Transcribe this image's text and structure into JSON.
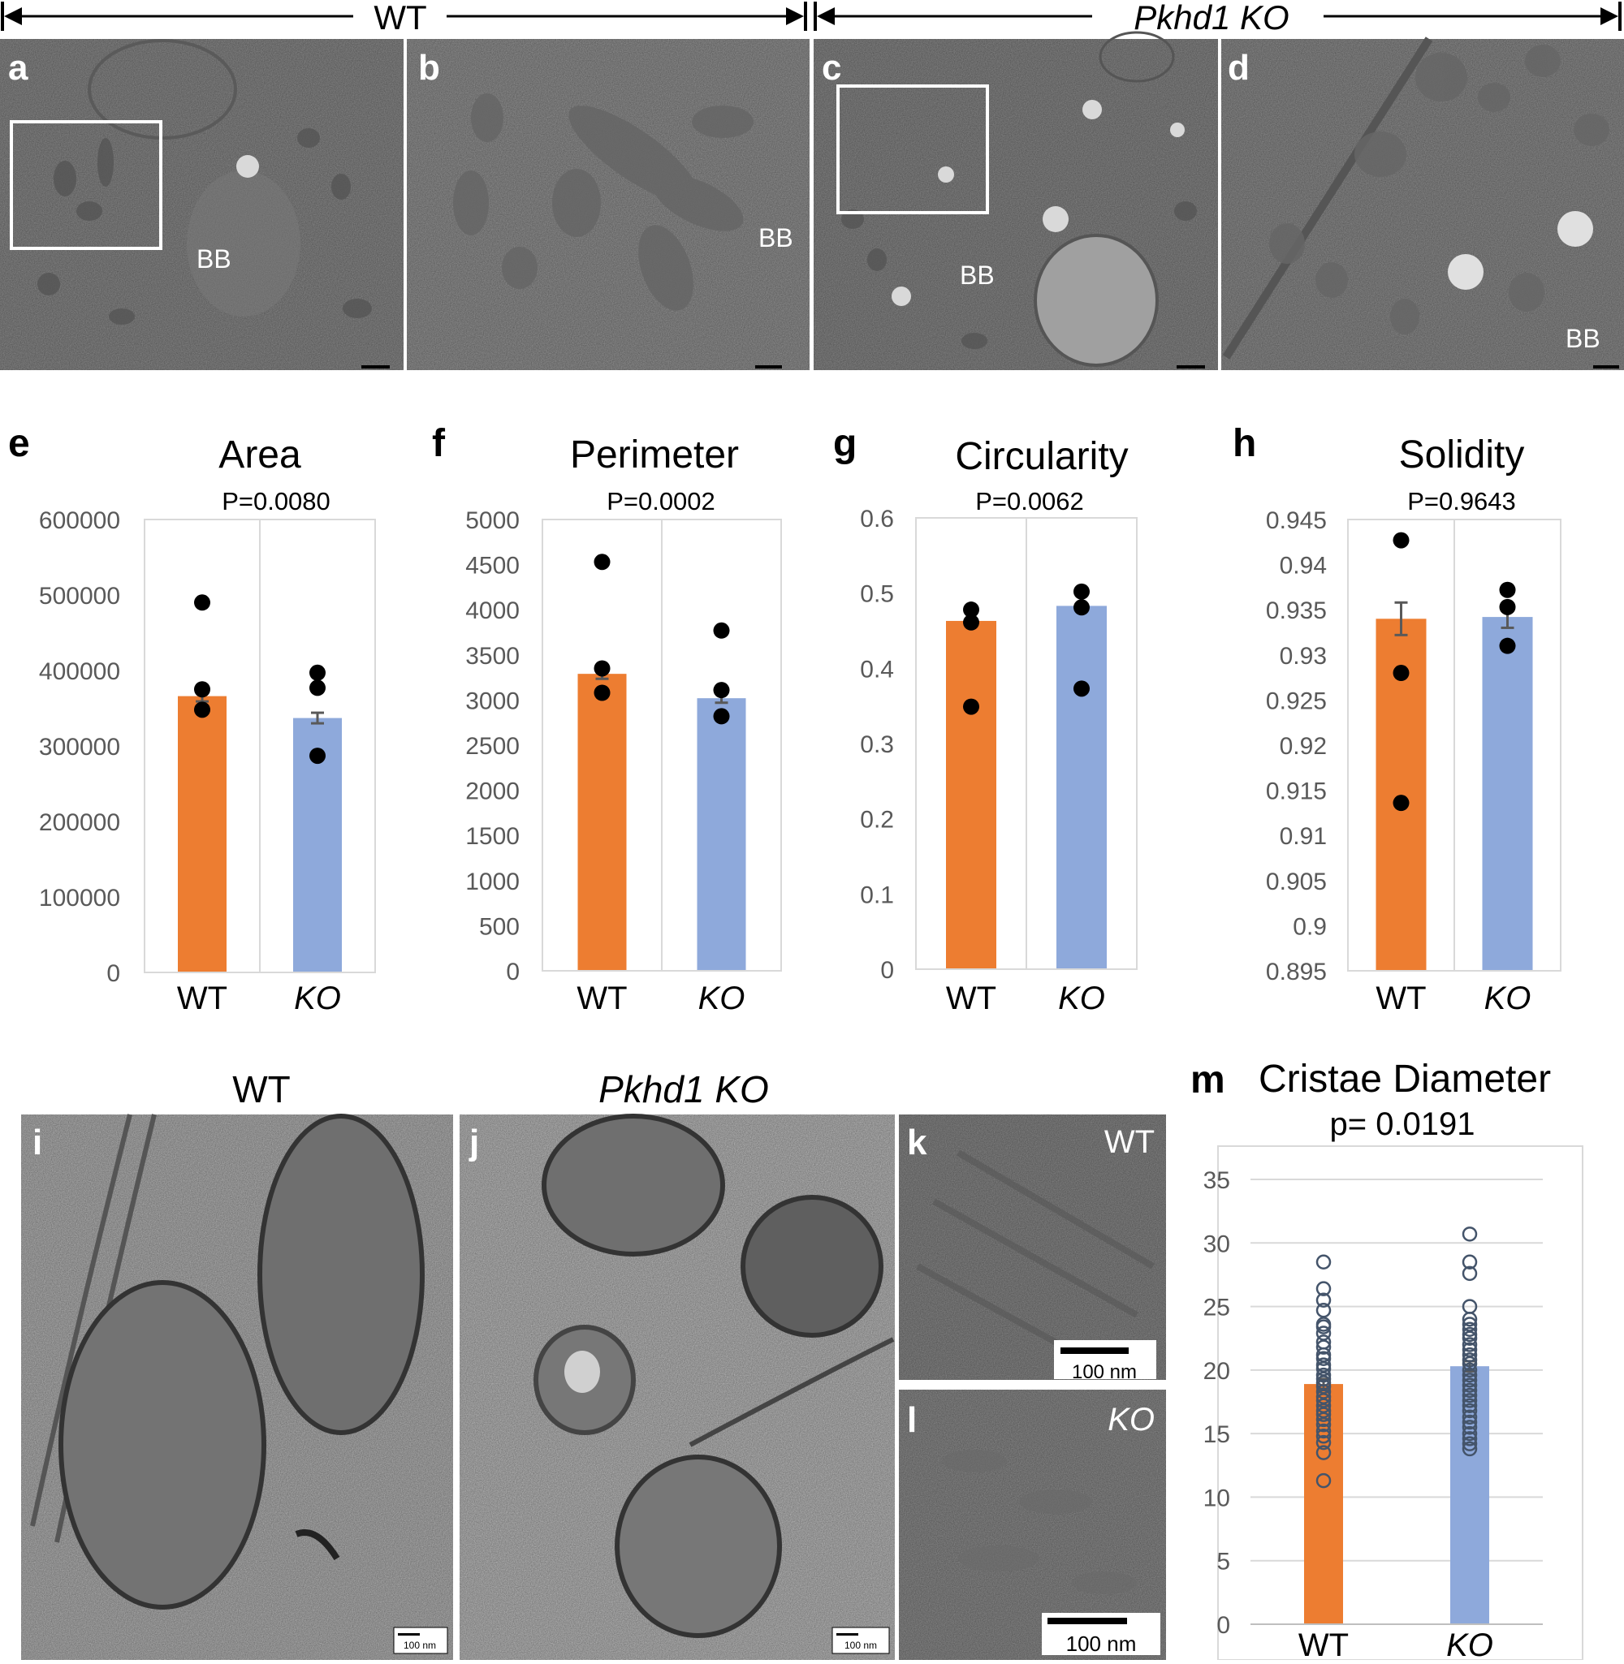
{
  "header": {
    "wt_label": "WT",
    "ko_label": "Pkhd1 KO"
  },
  "panels_top": [
    {
      "letter": "a",
      "bb": "BB"
    },
    {
      "letter": "b",
      "bb": "BB"
    },
    {
      "letter": "c",
      "bb": "BB"
    },
    {
      "letter": "d",
      "bb": "BB"
    }
  ],
  "panels_bottom": {
    "i_letter": "i",
    "j_letter": "j",
    "k_letter": "k",
    "l_letter": "l",
    "wt_title": "WT",
    "ko_title": "Pkhd1 KO",
    "k_tag": "WT",
    "l_tag": "KO",
    "scale_small": "100 nm",
    "scale_large": "100 nm"
  },
  "colors": {
    "wt_bar": "#ED7D31",
    "ko_bar": "#8EA9DB",
    "dot": "#000000",
    "circle": "#44546A",
    "err": "#595959",
    "grid": "#D9D9D9",
    "tick_text": "#595959"
  },
  "chart_data": [
    {
      "panel": "e",
      "type": "bar",
      "title": "Area",
      "pvalue": "P=0.0080",
      "categories": [
        "WT",
        "KO"
      ],
      "values": [
        366000,
        337000
      ],
      "errors": [
        7000,
        7000
      ],
      "points": [
        [
          490000,
          375000,
          348000
        ],
        [
          397000,
          377000,
          287000
        ]
      ],
      "ylim": [
        0,
        600000
      ],
      "yticks": [
        "0",
        "100000",
        "200000",
        "300000",
        "400000",
        "500000",
        "600000"
      ]
    },
    {
      "panel": "f",
      "type": "bar",
      "title": "Perimeter",
      "pvalue": "P=0.0002",
      "categories": [
        "WT",
        "KO"
      ],
      "values": [
        3290,
        3020
      ],
      "errors": [
        55,
        50
      ],
      "points": [
        [
          4530,
          3350,
          3080
        ],
        [
          3770,
          3110,
          2820
        ]
      ],
      "ylim": [
        0,
        5000
      ],
      "yticks": [
        "0",
        "500",
        "1000",
        "1500",
        "2000",
        "2500",
        "3000",
        "3500",
        "4000",
        "4500",
        "5000"
      ]
    },
    {
      "panel": "g",
      "type": "bar",
      "title": "Circularity",
      "pvalue": "P=0.0062",
      "categories": [
        "WT",
        "KO"
      ],
      "values": [
        0.463,
        0.483
      ],
      "errors": [
        0.0,
        0.0
      ],
      "points": [
        [
          0.478,
          0.461,
          0.349
        ],
        [
          0.502,
          0.481,
          0.373
        ]
      ],
      "ylim": [
        0,
        0.6
      ],
      "yticks": [
        "0",
        "0.1",
        "0.2",
        "0.3",
        "0.4",
        "0.5",
        "0.6"
      ]
    },
    {
      "panel": "h",
      "type": "bar",
      "title": "Solidity",
      "pvalue": "P=0.9643",
      "categories": [
        "WT",
        "KO"
      ],
      "values": [
        0.934,
        0.9342
      ],
      "errors": [
        0.0018,
        0.0012
      ],
      "points": [
        [
          0.9427,
          0.928,
          0.9136
        ],
        [
          0.9372,
          0.9353,
          0.931
        ]
      ],
      "ylim": [
        0.895,
        0.945
      ],
      "yticks": [
        "0.895",
        "0.9",
        "0.905",
        "0.91",
        "0.915",
        "0.92",
        "0.925",
        "0.93",
        "0.935",
        "0.94",
        "0.945"
      ]
    },
    {
      "panel": "m",
      "type": "bar",
      "title": "Cristae Diameter",
      "pvalue": "p= 0.0191",
      "categories": [
        "WT",
        "KO"
      ],
      "values": [
        18.9,
        20.3
      ],
      "errors": [
        0.4,
        0.4
      ],
      "points": [
        [
          28.5,
          26.4,
          25.5,
          24.7,
          23.6,
          23.4,
          22.9,
          22.2,
          21.8,
          21.2,
          20.9,
          20.4,
          20.1,
          19.6,
          19.3,
          19.0,
          18.7,
          18.3,
          17.9,
          17.6,
          17.2,
          16.8,
          16.5,
          16.1,
          15.7,
          15.2,
          14.8,
          14.3,
          13.5,
          11.3
        ],
        [
          30.7,
          28.5,
          27.6,
          25.0,
          24.0,
          23.6,
          23.2,
          22.8,
          22.5,
          22.0,
          21.6,
          21.2,
          20.8,
          20.5,
          20.0,
          19.6,
          19.2,
          18.8,
          18.4,
          18.0,
          17.6,
          17.2,
          16.8,
          16.3,
          15.9,
          15.5,
          15.0,
          14.6,
          14.2,
          13.8
        ]
      ],
      "ylim": [
        0,
        35
      ],
      "yticks": [
        "0",
        "5",
        "10",
        "15",
        "20",
        "25",
        "30",
        "35"
      ]
    }
  ]
}
